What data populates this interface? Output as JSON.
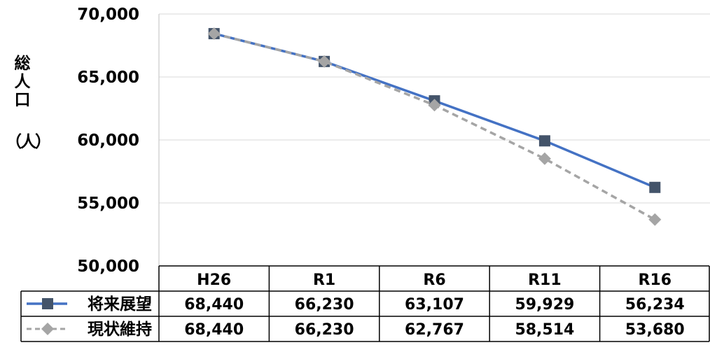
{
  "chart_data": {
    "type": "line",
    "ylabel_vertical": "総人口",
    "ylabel_unit": "（人）",
    "ylim": [
      50000,
      70000
    ],
    "yticks": [
      {
        "value": 50000,
        "label": "50,000"
      },
      {
        "value": 55000,
        "label": "55,000"
      },
      {
        "value": 60000,
        "label": "60,000"
      },
      {
        "value": 65000,
        "label": "65,000"
      },
      {
        "value": 70000,
        "label": "70,000"
      }
    ],
    "grid": true,
    "categories": [
      "H26",
      "R1",
      "R6",
      "R11",
      "R16"
    ],
    "series": [
      {
        "name": "将来展望",
        "values": [
          68440,
          66230,
          63107,
          59929,
          56234
        ],
        "labels": [
          "68,440",
          "66,230",
          "63,107",
          "59,929",
          "56,234"
        ],
        "color": "#4472C4",
        "marker_color": "#44546A",
        "marker": "square",
        "line_style": "solid"
      },
      {
        "name": "現状維持",
        "values": [
          68440,
          66230,
          62767,
          58514,
          53680
        ],
        "labels": [
          "68,440",
          "66,230",
          "62,767",
          "58,514",
          "53,680"
        ],
        "color": "#A5A5A5",
        "marker_color": "#A5A5A5",
        "marker": "diamond",
        "line_style": "dashed"
      }
    ],
    "legend": "data-table"
  }
}
